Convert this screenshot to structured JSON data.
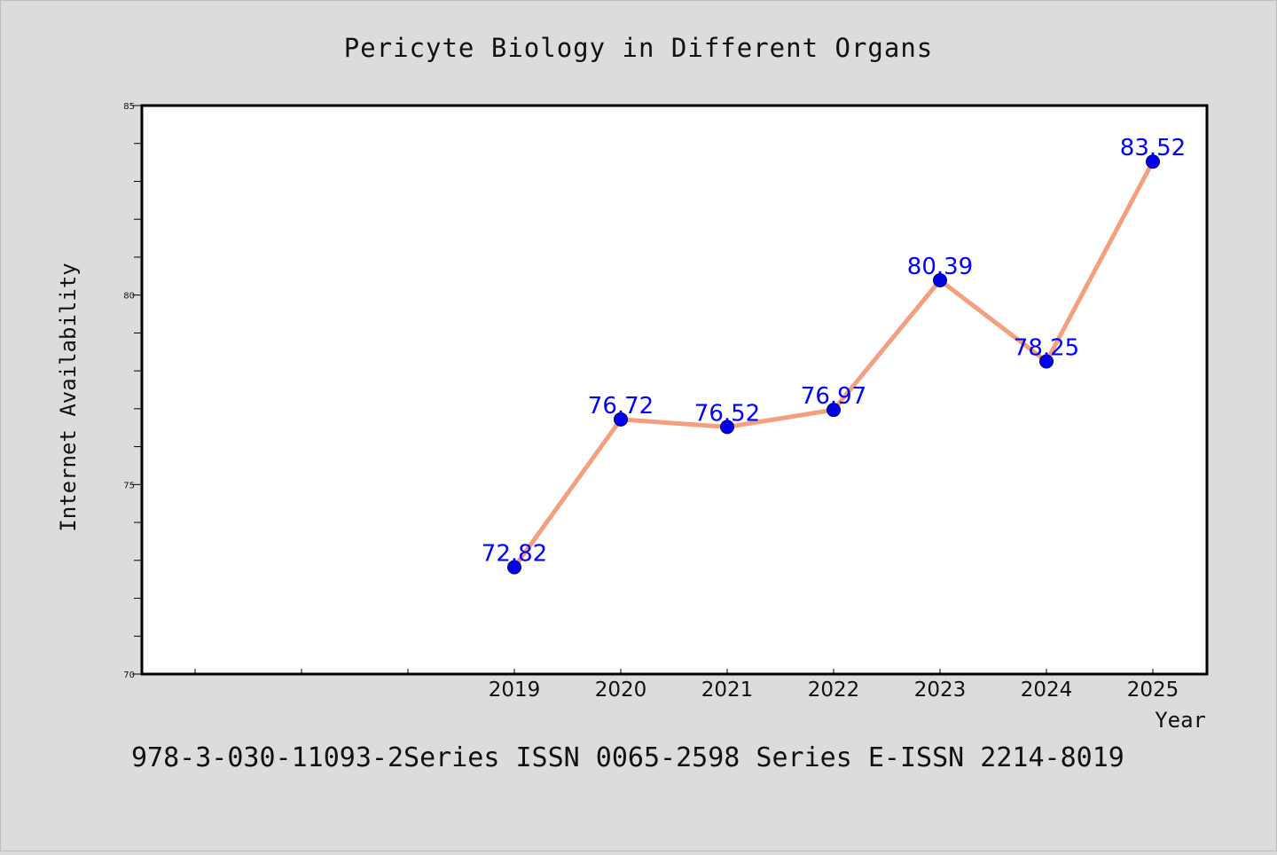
{
  "chart_data": {
    "type": "line",
    "title": "Pericyte Biology in Different Organs",
    "xlabel": "Year",
    "ylabel": "Internet Availability",
    "x": [
      "2019",
      "2020",
      "2021",
      "2022",
      "2023",
      "2024",
      "2025"
    ],
    "series": [
      {
        "values": [
          72.82,
          76.72,
          76.52,
          76.97,
          80.39,
          78.25,
          83.52
        ],
        "labels": [
          "72.82",
          "76.72",
          "76.52",
          "76.97",
          "80.39",
          "78.25",
          "83.52"
        ]
      }
    ],
    "ylim": [
      70,
      85
    ],
    "y_ticks": [
      "70",
      "75",
      "80",
      "85"
    ],
    "grid": false,
    "legend": "none",
    "footer": "978-3-030-11093-2Series ISSN 0065-2598 Series E-ISSN 2214-8019",
    "colors": {
      "line": "#f4a07f",
      "marker": "#0000ee",
      "marker_edge": "#000066",
      "data_label": "#0000ff",
      "background": "#dcdcdc",
      "plot_background": "#ffffff"
    }
  }
}
